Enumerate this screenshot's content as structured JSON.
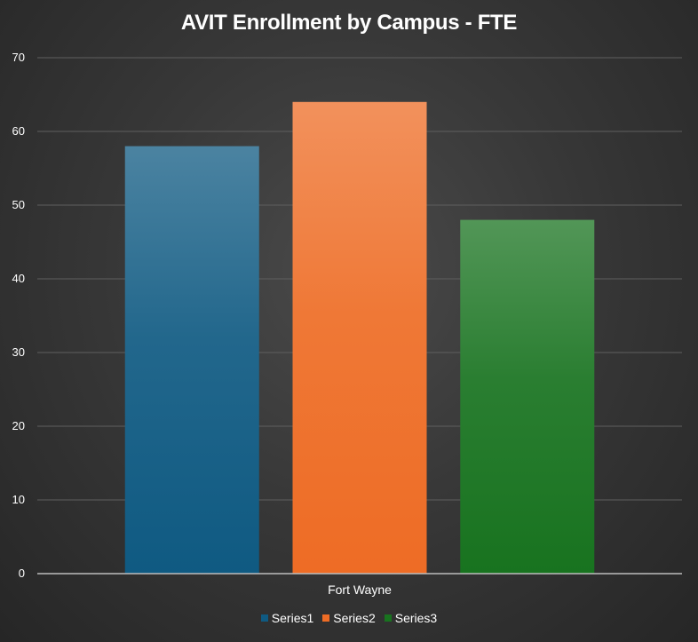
{
  "chart_data": {
    "type": "bar",
    "title": "AVIT Enrollment by Campus - FTE",
    "categories": [
      "Fort Wayne"
    ],
    "series": [
      {
        "name": "Series1",
        "values": [
          58
        ],
        "color": "#0f5a82"
      },
      {
        "name": "Series2",
        "values": [
          64
        ],
        "color": "#ee6c25"
      },
      {
        "name": "Series3",
        "values": [
          48
        ],
        "color": "#18731f"
      }
    ],
    "xlabel": "",
    "ylabel": "",
    "ylim": [
      0,
      70
    ],
    "yticks": [
      "0",
      "10",
      "20",
      "30",
      "40",
      "50",
      "60",
      "70"
    ],
    "grid": true,
    "legend_position": "bottom"
  }
}
